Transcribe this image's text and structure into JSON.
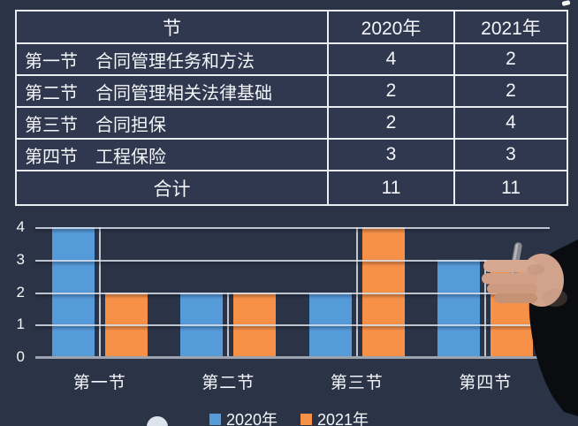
{
  "colors": {
    "background": "#2b3447",
    "table_border": "#e9ecf1",
    "text": "#f3f5f8",
    "gridline": "#d8dee8",
    "axis_baseline": "#9ba3af",
    "series_2020": "#559ad9",
    "series_2021": "#f79148"
  },
  "table": {
    "header": {
      "col_section": "节",
      "col_2020": "2020年",
      "col_2021": "2021年"
    },
    "rows": [
      {
        "label": "第一节",
        "name": "合同管理任务和方法",
        "y2020": "4",
        "y2021": "2"
      },
      {
        "label": "第二节",
        "name": "合同管理相关法律基础",
        "y2020": "2",
        "y2021": "2"
      },
      {
        "label": "第三节",
        "name": "合同担保",
        "y2020": "2",
        "y2021": "4"
      },
      {
        "label": "第四节",
        "name": "工程保险",
        "y2020": "3",
        "y2021": "3"
      }
    ],
    "total": {
      "label": "合计",
      "y2020": "11",
      "y2021": "11"
    }
  },
  "chart_data": {
    "type": "bar",
    "categories": [
      "第一节",
      "第二节",
      "第三节",
      "第四节"
    ],
    "series": [
      {
        "name": "2020年",
        "color": "#559ad9",
        "values": [
          4,
          2,
          2,
          3
        ]
      },
      {
        "name": "2021年",
        "color": "#f79148",
        "values": [
          2,
          2,
          4,
          3
        ]
      }
    ],
    "title": "",
    "xlabel": "",
    "ylabel": "",
    "ylim": [
      0,
      4
    ],
    "yticks": [
      0,
      1,
      2,
      3,
      4
    ],
    "grid": true,
    "legend_position": "bottom"
  },
  "icons": {
    "presenter_hand": "hand-holding-pen-photo-overlay",
    "cursor_dot": "white-circle",
    "corner_speck": "white-mark"
  }
}
